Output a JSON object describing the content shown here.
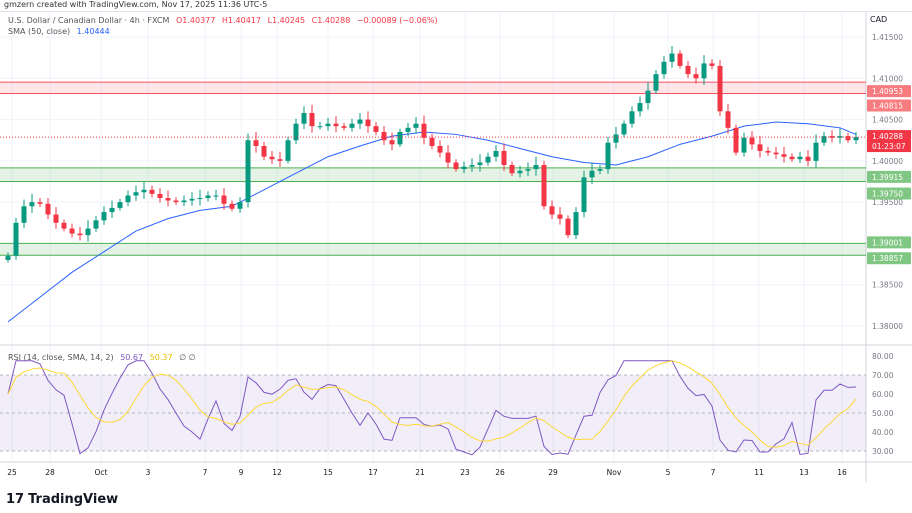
{
  "credit": "gmzern created with TradingView.com, Nov 17, 2025 11:36 UTC-5",
  "legend": {
    "symbol": "U.S. Dollar / Canadian Dollar · 4h · FXCM",
    "o": "O1.40377",
    "h": "H1.40417",
    "l": "L1.40245",
    "c": "C1.40288",
    "chg": "−0.00089 (−0.06%)",
    "sma_label": "SMA (50, close)",
    "sma_value": "1.40444",
    "rsi_label": "RSI (14, close, SMA, 14, 2)",
    "rsi_value": "50.67",
    "rsi_sma_value": "50.37",
    "rsi_extra": "∅ ∅"
  },
  "currency": "CAD",
  "logo": "TradingView",
  "colors": {
    "up": "#089981",
    "down": "#f23645",
    "sma": "#2962ff",
    "rsi": "#7e57c2",
    "rsi_sma": "#fdd835",
    "resistance": "#f7525f",
    "support": "#4caf50"
  },
  "chart_data": [
    {
      "type": "candlestick",
      "ylim": [
        1.3795,
        1.4165
      ],
      "y_ticks": [
        "1.41500",
        "1.41000",
        "1.40500",
        "1.40000",
        "1.39500",
        "1.38500",
        "1.38000"
      ],
      "x_ticks": [
        "25",
        "28",
        "Oct",
        "3",
        "7",
        "9",
        "12",
        "15",
        "17",
        "21",
        "23",
        "26",
        "29",
        "Nov",
        "5",
        "7",
        "11",
        "13",
        "16"
      ],
      "closes": [
        1.3885,
        1.3925,
        1.3945,
        1.395,
        1.3948,
        1.3935,
        1.3925,
        1.3918,
        1.3912,
        1.391,
        1.3918,
        1.3928,
        1.3938,
        1.3943,
        1.395,
        1.3958,
        1.3962,
        1.3965,
        1.396,
        1.3955,
        1.3952,
        1.395,
        1.3952,
        1.3954,
        1.3955,
        1.3958,
        1.3958,
        1.3948,
        1.3942,
        1.395,
        1.4025,
        1.4018,
        1.4005,
        1.4002,
        1.4,
        1.4025,
        1.4045,
        1.4058,
        1.4042,
        1.4042,
        1.4045,
        1.4042,
        1.404,
        1.4045,
        1.405,
        1.4042,
        1.4035,
        1.4025,
        1.402,
        1.4035,
        1.404,
        1.4045,
        1.4028,
        1.4018,
        1.401,
        1.3998,
        1.399,
        1.3993,
        1.3995,
        1.3998,
        1.4005,
        1.4012,
        1.3995,
        1.3985,
        1.3988,
        1.399,
        1.3995,
        1.3945,
        1.3935,
        1.393,
        1.391,
        1.3938,
        1.398,
        1.3988,
        1.399,
        1.4022,
        1.4032,
        1.4045,
        1.406,
        1.407,
        1.4085,
        1.4105,
        1.412,
        1.413,
        1.4115,
        1.4105,
        1.41,
        1.4118,
        1.4115,
        1.406,
        1.404,
        1.401,
        1.4028,
        1.402,
        1.4012,
        1.401,
        1.4008,
        1.4005,
        1.4002,
        1.4005,
        1.4,
        1.4022,
        1.403,
        1.4028,
        1.403,
        1.4025,
        1.40288
      ],
      "first_open": 1.388,
      "sma50_every4": [
        1.3805,
        1.3835,
        1.3865,
        1.389,
        1.3915,
        1.393,
        1.394,
        1.3945,
        1.3965,
        1.3985,
        1.4005,
        1.4018,
        1.403,
        1.4035,
        1.4032,
        1.4025,
        1.4015,
        1.4005,
        1.3998,
        1.3995,
        1.4005,
        1.402,
        1.403,
        1.4042,
        1.4047,
        1.4045,
        1.404
      ],
      "zones": [
        {
          "top": 1.40953,
          "bottom": 1.40815,
          "kind": "resistance",
          "labels": [
            "1.40953",
            "1.40815"
          ]
        },
        {
          "top": 1.39915,
          "bottom": 1.3975,
          "kind": "support",
          "labels": [
            "1.39915",
            "1.39750"
          ]
        },
        {
          "top": 1.39001,
          "bottom": 1.38857,
          "kind": "support",
          "labels": [
            "1.39001",
            "1.38857"
          ]
        }
      ],
      "last_price": "1.40288",
      "countdown": "01:23:07"
    },
    {
      "type": "line",
      "title": "RSI",
      "ylim": [
        30,
        80
      ],
      "y_ticks": [
        "80.00",
        "70.00",
        "60.00",
        "50.00",
        "40.00",
        "30.00"
      ],
      "bands": [
        30,
        70
      ],
      "mid": 50
    }
  ]
}
